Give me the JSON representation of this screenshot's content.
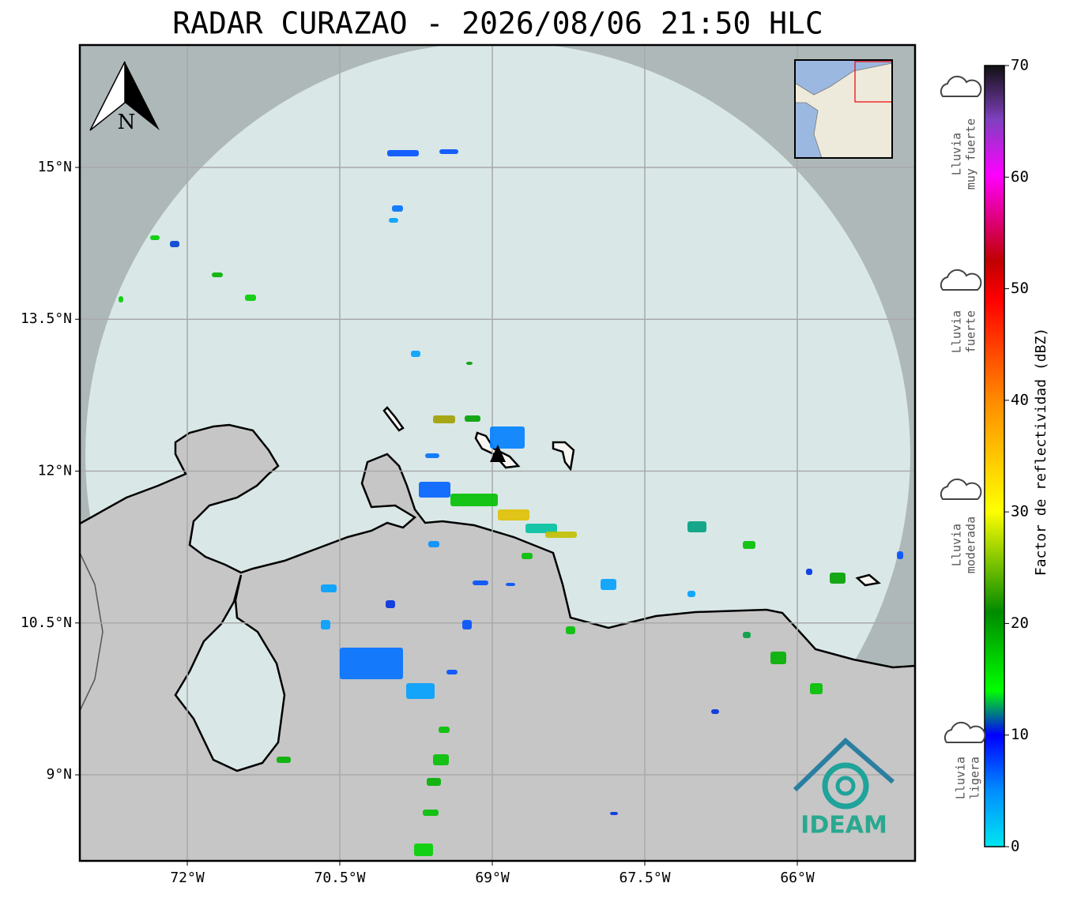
{
  "title": "RADAR CURAZAO - 2026/08/06 21:50 HLC",
  "map": {
    "xlim": [
      -73.057,
      -64.842
    ],
    "ylim": [
      8.15,
      16.209
    ],
    "xticks": [
      {
        "value": -72,
        "label": "72°W"
      },
      {
        "value": -70.5,
        "label": "70.5°W"
      },
      {
        "value": -69,
        "label": "69°W"
      },
      {
        "value": -67.5,
        "label": "67.5°W"
      },
      {
        "value": -66,
        "label": "66°W"
      }
    ],
    "yticks": [
      {
        "value": 15,
        "label": "15°N"
      },
      {
        "value": 13.5,
        "label": "13.5°N"
      },
      {
        "value": 12,
        "label": "12°N"
      },
      {
        "value": 10.5,
        "label": "10.5°N"
      },
      {
        "value": 9,
        "label": "9°N"
      }
    ]
  },
  "north": "N",
  "logo": "IDEAM",
  "colorbar": {
    "label": "Factor de reflectividad (dBZ)",
    "lim": [
      0,
      70
    ],
    "ticks": [
      0,
      10,
      20,
      30,
      40,
      50,
      60,
      70
    ]
  },
  "legend": [
    [
      "Lluvia",
      "muy fuerte"
    ],
    [
      "Lluvia",
      "fuerte"
    ],
    [
      "Lluvia",
      "moderada"
    ],
    [
      "Lluvia",
      "ligera"
    ]
  ]
}
